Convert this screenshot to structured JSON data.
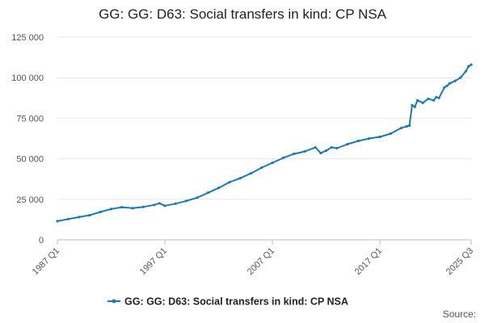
{
  "chart_data": {
    "type": "line",
    "title": "GG: GG: D63: Social transfers in kind: CP NSA",
    "xlabel": "",
    "ylabel": "",
    "ylim": [
      0,
      125000
    ],
    "y_ticks": [
      0,
      25000,
      50000,
      75000,
      100000,
      125000
    ],
    "y_tick_labels": [
      "0",
      "25 000",
      "50 000",
      "75 000",
      "100 000",
      "125 000"
    ],
    "x_tick_labels": [
      "1987 Q1",
      "1997 Q1",
      "2007 Q1",
      "2017 Q1",
      "2025 Q3"
    ],
    "x_tick_quarters": [
      0,
      40,
      80,
      120,
      154
    ],
    "grid": true,
    "legend_position": "bottom",
    "color": "#1a7ab5",
    "source_label": "Source:",
    "series": [
      {
        "name": "GG: GG: D63: Social transfers in kind: CP NSA",
        "x": [
          "1987 Q1",
          "1988 Q1",
          "1989 Q1",
          "1990 Q1",
          "1991 Q1",
          "1992 Q1",
          "1993 Q1",
          "1994 Q1",
          "1995 Q1",
          "1996 Q1",
          "1996 Q3",
          "1997 Q1",
          "1998 Q1",
          "1999 Q1",
          "2000 Q1",
          "2001 Q1",
          "2002 Q1",
          "2003 Q1",
          "2004 Q1",
          "2005 Q1",
          "2006 Q1",
          "2007 Q1",
          "2008 Q1",
          "2009 Q1",
          "2010 Q1",
          "2011 Q1",
          "2011 Q3",
          "2012 Q1",
          "2012 Q3",
          "2013 Q1",
          "2014 Q1",
          "2015 Q1",
          "2016 Q1",
          "2017 Q1",
          "2018 Q1",
          "2019 Q1",
          "2019 Q3",
          "2019 Q4",
          "2020 Q1",
          "2020 Q2",
          "2020 Q3",
          "2021 Q1",
          "2021 Q3",
          "2022 Q1",
          "2022 Q2",
          "2022 Q3",
          "2023 Q1",
          "2023 Q2",
          "2023 Q3",
          "2024 Q1",
          "2024 Q3",
          "2025 Q1",
          "2025 Q2",
          "2025 Q3"
        ],
        "values": [
          11500,
          12800,
          14000,
          15200,
          17200,
          19000,
          20100,
          19500,
          20300,
          21500,
          22500,
          21000,
          22300,
          24000,
          26000,
          29000,
          32000,
          35500,
          38000,
          41000,
          44500,
          47500,
          50500,
          53000,
          54500,
          57000,
          53500,
          55000,
          57000,
          56500,
          59000,
          61000,
          62500,
          63500,
          65500,
          69000,
          70000,
          70500,
          83000,
          82000,
          86000,
          84500,
          87000,
          86000,
          88000,
          87500,
          94000,
          95000,
          96500,
          98000,
          100000,
          104000,
          107000,
          108000
        ]
      }
    ]
  }
}
